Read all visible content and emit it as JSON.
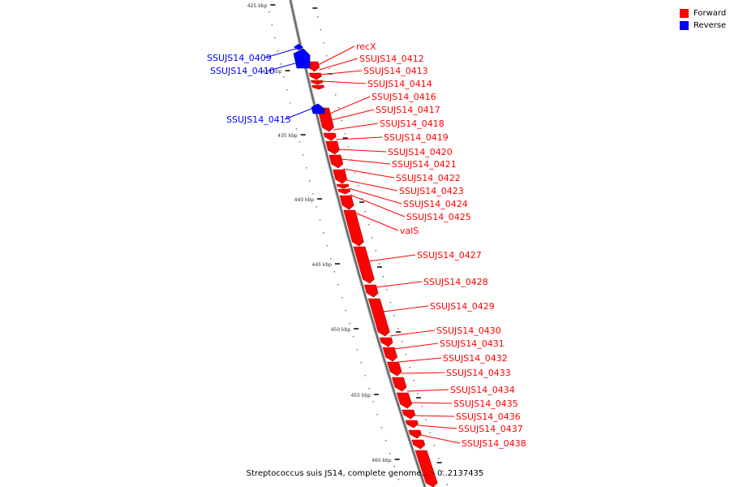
{
  "legend": {
    "forward_label": "Forward",
    "reverse_label": "Reverse",
    "forward_color": "#ff0000",
    "reverse_color": "#0000ff"
  },
  "caption": "Streptococcus suis JS14, complete genome... - 0..2137435",
  "scale_labels": [
    "425 kbp",
    "430 kbp",
    "435 kbp",
    "440 kbp",
    "445 kbp",
    "450 kbp",
    "455 kbp",
    "460 kbp"
  ],
  "reverse_genes": [
    "SSUJS14_0409",
    "SSUJS14_0410",
    "SSUJS14_0415"
  ],
  "forward_genes": [
    "recX",
    "SSUJS14_0412",
    "SSUJS14_0413",
    "SSUJS14_0414",
    "SSUJS14_0416",
    "SSUJS14_0417",
    "SSUJS14_0418",
    "SSUJS14_0419",
    "SSUJS14_0420",
    "SSUJS14_0421",
    "SSUJS14_0422",
    "SSUJS14_0423",
    "SSUJS14_0424",
    "SSUJS14_0425",
    "valS",
    "SSUJS14_0427",
    "SSUJS14_0428",
    "SSUJS14_0429",
    "SSUJS14_0430",
    "SSUJS14_0431",
    "SSUJS14_0432",
    "SSUJS14_0433",
    "SSUJS14_0434",
    "SSUJS14_0435",
    "SSUJS14_0436",
    "SSUJS14_0437",
    "SSUJS14_0438"
  ]
}
